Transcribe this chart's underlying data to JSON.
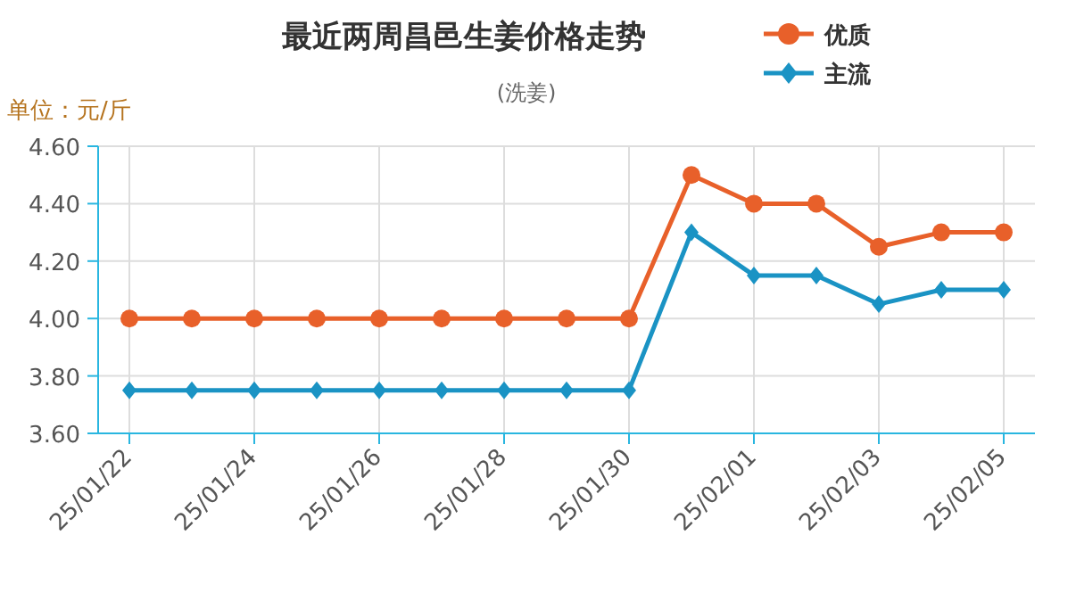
{
  "chart_data": {
    "type": "line",
    "title": "最近两周昌邑生姜价格走势",
    "subtitle": "(洗姜)",
    "ylabel": "单位：元/斤",
    "categories": [
      "25/01/22",
      null,
      "25/01/24",
      null,
      "25/01/26",
      null,
      "25/01/28",
      null,
      "25/01/30",
      null,
      "25/02/01",
      null,
      "25/02/03",
      null,
      "25/02/05"
    ],
    "series": [
      {
        "name": "优质",
        "color": "#e8602a",
        "marker": "circle",
        "values": [
          4.0,
          4.0,
          4.0,
          4.0,
          4.0,
          4.0,
          4.0,
          4.0,
          4.0,
          4.5,
          4.4,
          4.4,
          4.25,
          4.3,
          4.3
        ]
      },
      {
        "name": "主流",
        "color": "#1a93c4",
        "marker": "diamond",
        "values": [
          3.75,
          3.75,
          3.75,
          3.75,
          3.75,
          3.75,
          3.75,
          3.75,
          3.75,
          4.3,
          4.15,
          4.15,
          4.05,
          4.1,
          4.1
        ]
      }
    ],
    "ylim": [
      3.6,
      4.6
    ],
    "yticks": [
      {
        "value": 3.6,
        "label": "3.60"
      },
      {
        "value": 3.8,
        "label": "3.80"
      },
      {
        "value": 4.0,
        "label": "4.00"
      },
      {
        "value": 4.2,
        "label": "4.20"
      },
      {
        "value": 4.4,
        "label": "4.40"
      },
      {
        "value": 4.6,
        "label": "4.60"
      }
    ],
    "grid": true,
    "legend": "top right"
  }
}
